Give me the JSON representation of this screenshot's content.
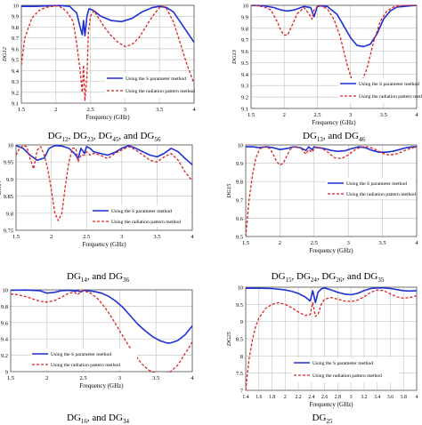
{
  "captions": [
    {
      "base": "DG",
      "parts": [
        "12",
        ", DG",
        "23",
        ", DG",
        "45",
        ", and DG",
        "56"
      ]
    },
    {
      "base": "DG",
      "parts": [
        "13",
        ", and DG",
        "46"
      ]
    },
    {
      "base": "DG",
      "parts": [
        "14",
        ", and DG",
        "36"
      ]
    },
    {
      "base": "DG",
      "parts": [
        "15",
        ", DG",
        "24",
        ", DG",
        "26",
        ", and DG",
        "35"
      ]
    },
    {
      "base": "DG",
      "parts": [
        "16",
        ", and DG",
        "34"
      ]
    },
    {
      "base": "DG",
      "parts": [
        "25"
      ]
    }
  ],
  "chart_data": [
    {
      "type": "line",
      "xlabel": "Frequency (GHz)",
      "ylabel": "DG12",
      "xlim": [
        1.5,
        4
      ],
      "ylim": [
        9.1,
        10
      ],
      "xticks": [
        "1.5",
        "2",
        "2.5",
        "3",
        "3.5",
        "4"
      ],
      "yticks": [
        "9.1",
        "9.2",
        "9.3",
        "9.4",
        "9.5",
        "9.6",
        "9.7",
        "9.8",
        "9.9",
        "10"
      ],
      "colors": [
        "#1f2fd6",
        "#e02020"
      ],
      "legend": "bottom-right",
      "series": [
        {
          "name": "Using the S parameter method",
          "style": "solid",
          "x": [
            1.5,
            1.7,
            1.9,
            2.05,
            2.2,
            2.3,
            2.35,
            2.38,
            2.4,
            2.42,
            2.45,
            2.48,
            2.55,
            2.65,
            2.8,
            2.95,
            3.1,
            3.25,
            3.4,
            3.5,
            3.6,
            3.7,
            3.85,
            4.0
          ],
          "y": [
            9.99,
            9.99,
            9.995,
            9.998,
            9.99,
            9.93,
            9.8,
            9.73,
            9.86,
            9.72,
            9.9,
            9.97,
            9.95,
            9.9,
            9.86,
            9.85,
            9.88,
            9.94,
            9.98,
            9.99,
            9.98,
            9.94,
            9.8,
            9.66
          ]
        },
        {
          "name": "Using the radiation pattern method",
          "style": "dashed",
          "x": [
            1.5,
            1.55,
            1.65,
            1.75,
            1.85,
            1.95,
            2.0,
            2.05,
            2.15,
            2.25,
            2.3,
            2.35,
            2.38,
            2.4,
            2.42,
            2.45,
            2.47,
            2.5,
            2.55,
            2.6,
            2.7,
            2.8,
            2.9,
            3.0,
            3.1,
            3.2,
            3.3,
            3.4,
            3.5,
            3.55,
            3.6,
            3.7,
            3.8,
            3.9,
            4.0
          ],
          "y": [
            9.45,
            9.7,
            9.88,
            9.95,
            9.98,
            9.99,
            9.995,
            9.99,
            9.95,
            9.85,
            9.65,
            9.4,
            9.2,
            9.45,
            9.12,
            9.35,
            9.75,
            9.9,
            9.95,
            9.9,
            9.8,
            9.72,
            9.66,
            9.62,
            9.64,
            9.7,
            9.8,
            9.9,
            9.98,
            9.99,
            9.97,
            9.85,
            9.65,
            9.45,
            9.28
          ]
        }
      ]
    },
    {
      "type": "line",
      "xlabel": "Frequency (GHz)",
      "ylabel": "DG13",
      "xlim": [
        1.5,
        4
      ],
      "ylim": [
        9.1,
        10
      ],
      "xticks": [
        "1.5",
        "2",
        "2.5",
        "3",
        "3.5",
        "4"
      ],
      "yticks": [
        "9.1",
        "9.2",
        "9.3",
        "9.4",
        "9.5",
        "9.6",
        "9.7",
        "9.8",
        "9.9",
        "10"
      ],
      "colors": [
        "#1f2fd6",
        "#e02020"
      ],
      "legend": "bottom-right",
      "series": [
        {
          "name": "Using the S parameter method",
          "style": "solid",
          "x": [
            1.5,
            1.7,
            1.85,
            1.95,
            2.05,
            2.15,
            2.3,
            2.4,
            2.45,
            2.5,
            2.55,
            2.65,
            2.8,
            2.9,
            3.0,
            3.1,
            3.2,
            3.3,
            3.4,
            3.5,
            3.6,
            3.7,
            3.8,
            3.9,
            4.0
          ],
          "y": [
            10.0,
            9.995,
            9.98,
            9.96,
            9.95,
            9.96,
            9.99,
            9.98,
            9.9,
            9.99,
            9.995,
            9.99,
            9.92,
            9.82,
            9.72,
            9.65,
            9.64,
            9.66,
            9.75,
            9.88,
            9.95,
            9.985,
            9.99,
            9.995,
            10.0
          ]
        },
        {
          "name": "Using the radiation pattern method",
          "style": "dashed",
          "x": [
            1.5,
            1.6,
            1.7,
            1.8,
            1.9,
            1.95,
            2.0,
            2.05,
            2.1,
            2.2,
            2.3,
            2.38,
            2.42,
            2.45,
            2.5,
            2.55,
            2.65,
            2.75,
            2.85,
            2.95,
            3.05,
            3.15,
            3.25,
            3.35,
            3.45,
            3.55,
            3.65,
            3.75,
            3.85,
            4.0
          ],
          "y": [
            10.0,
            9.995,
            9.985,
            9.96,
            9.85,
            9.78,
            9.74,
            9.74,
            9.8,
            9.93,
            9.98,
            9.92,
            9.88,
            9.96,
            9.99,
            9.995,
            9.97,
            9.88,
            9.72,
            9.48,
            9.3,
            9.3,
            9.45,
            9.68,
            9.86,
            9.95,
            9.985,
            9.995,
            10.0,
            10.0
          ]
        }
      ]
    },
    {
      "type": "line",
      "xlabel": "Frequency (GHz)",
      "ylabel": "DG14",
      "xlim": [
        1.5,
        4
      ],
      "ylim": [
        9.75,
        10
      ],
      "xticks": [
        "1.5",
        "2",
        "2.5",
        "3",
        "3.5",
        "4"
      ],
      "yticks": [
        "9.75",
        "9.8",
        "9.85",
        "9.9",
        "9.95",
        "10"
      ],
      "colors": [
        "#1f2fd6",
        "#e02020"
      ],
      "legend": "bottom-right",
      "series": [
        {
          "name": "Using the S parameter method",
          "style": "solid",
          "x": [
            1.5,
            1.6,
            1.7,
            1.8,
            1.9,
            1.97,
            2.05,
            2.15,
            2.25,
            2.33,
            2.38,
            2.42,
            2.47,
            2.5,
            2.55,
            2.6,
            2.7,
            2.8,
            2.9,
            3.0,
            3.1,
            3.2,
            3.3,
            3.4,
            3.5,
            3.6,
            3.7,
            3.8,
            3.9,
            4.0
          ],
          "y": [
            9.998,
            9.99,
            9.97,
            9.955,
            9.962,
            9.99,
            9.998,
            9.997,
            9.99,
            9.975,
            9.96,
            9.99,
            9.975,
            9.995,
            9.99,
            9.98,
            9.975,
            9.97,
            9.978,
            9.99,
            9.998,
            9.99,
            9.98,
            9.97,
            9.965,
            9.975,
            9.99,
            9.98,
            9.96,
            9.942
          ]
        },
        {
          "name": "Using the radiation pattern method",
          "style": "dashed",
          "x": [
            1.5,
            1.55,
            1.6,
            1.65,
            1.7,
            1.75,
            1.8,
            1.85,
            1.9,
            1.95,
            2.0,
            2.05,
            2.1,
            2.15,
            2.2,
            2.25,
            2.3,
            2.35,
            2.38,
            2.42,
            2.47,
            2.5,
            2.55,
            2.6,
            2.7,
            2.8,
            2.9,
            3.0,
            3.1,
            3.2,
            3.3,
            3.4,
            3.5,
            3.6,
            3.7,
            3.8,
            3.9,
            4.0
          ],
          "y": [
            9.97,
            9.99,
            9.998,
            9.995,
            9.96,
            9.93,
            9.985,
            9.995,
            9.97,
            9.93,
            9.87,
            9.8,
            9.778,
            9.8,
            9.88,
            9.95,
            9.99,
            9.99,
            9.95,
            9.97,
            9.97,
            9.98,
            9.97,
            9.975,
            9.97,
            9.96,
            9.975,
            9.985,
            9.995,
            9.985,
            9.97,
            9.955,
            9.95,
            9.965,
            9.975,
            9.955,
            9.92,
            9.895
          ]
        }
      ]
    },
    {
      "type": "line",
      "xlabel": "Frequency (GHz)",
      "ylabel": "DG15",
      "xlim": [
        1.5,
        4
      ],
      "ylim": [
        9.5,
        10
      ],
      "xticks": [
        "1.5",
        "2",
        "2.5",
        "3",
        "3.5",
        "4"
      ],
      "yticks": [
        "9.5",
        "9.6",
        "9.7",
        "9.8",
        "9.9",
        "10"
      ],
      "colors": [
        "#1f2fd6",
        "#e02020"
      ],
      "legend": "bottom-right",
      "series": [
        {
          "name": "Using the S parameter method",
          "style": "solid",
          "x": [
            1.5,
            1.6,
            1.7,
            1.8,
            1.9,
            2.0,
            2.1,
            2.2,
            2.3,
            2.38,
            2.42,
            2.47,
            2.5,
            2.55,
            2.65,
            2.75,
            2.85,
            2.95,
            3.05,
            3.15,
            3.25,
            3.35,
            3.45,
            3.55,
            3.65,
            3.75,
            3.85,
            3.95,
            4.0
          ],
          "y": [
            9.99,
            9.99,
            9.985,
            9.99,
            9.985,
            9.975,
            9.98,
            9.99,
            9.985,
            9.97,
            9.99,
            9.975,
            9.99,
            9.985,
            9.98,
            9.97,
            9.965,
            9.968,
            9.98,
            9.99,
            9.985,
            9.97,
            9.96,
            9.96,
            9.965,
            9.975,
            9.985,
            9.99,
            9.99
          ]
        },
        {
          "name": "Using the radiation pattern method",
          "style": "dashed",
          "x": [
            1.5,
            1.52,
            1.55,
            1.6,
            1.65,
            1.7,
            1.75,
            1.8,
            1.85,
            1.9,
            1.95,
            2.0,
            2.05,
            2.1,
            2.15,
            2.2,
            2.3,
            2.38,
            2.42,
            2.47,
            2.5,
            2.55,
            2.6,
            2.7,
            2.8,
            2.9,
            3.0,
            3.1,
            3.2,
            3.3,
            3.4,
            3.5,
            3.6,
            3.7,
            3.8,
            3.9,
            4.0
          ],
          "y": [
            9.5,
            9.58,
            9.7,
            9.84,
            9.93,
            9.975,
            9.99,
            9.99,
            9.98,
            9.95,
            9.91,
            9.89,
            9.9,
            9.94,
            9.975,
            9.99,
            9.985,
            9.95,
            9.975,
            9.96,
            9.98,
            9.99,
            9.985,
            9.96,
            9.93,
            9.925,
            9.945,
            9.975,
            9.99,
            9.99,
            9.975,
            9.955,
            9.945,
            9.95,
            9.965,
            9.98,
            9.99
          ]
        }
      ]
    },
    {
      "type": "line",
      "xlabel": "Frequency (GHz)",
      "ylabel": "DG16",
      "xlim": [
        1.5,
        4
      ],
      "ylim": [
        9,
        10
      ],
      "xticks": [
        "1.5",
        "2",
        "2.5",
        "3",
        "3.5",
        "4"
      ],
      "yticks": [
        "9",
        "9.2",
        "9.4",
        "9.6",
        "9.8",
        "10"
      ],
      "colors": [
        "#1f2fd6",
        "#e02020"
      ],
      "legend": "bottom-left",
      "series": [
        {
          "name": "Using the S parameter method",
          "style": "solid",
          "x": [
            1.5,
            1.7,
            1.9,
            2.0,
            2.1,
            2.2,
            2.3,
            2.38,
            2.42,
            2.47,
            2.5,
            2.55,
            2.65,
            2.75,
            2.85,
            2.95,
            3.05,
            3.15,
            3.25,
            3.35,
            3.45,
            3.55,
            3.65,
            3.7,
            3.8,
            3.9,
            4.0
          ],
          "y": [
            9.995,
            9.998,
            9.99,
            9.96,
            9.97,
            9.99,
            9.995,
            9.985,
            9.99,
            9.975,
            9.995,
            9.99,
            9.98,
            9.96,
            9.92,
            9.86,
            9.78,
            9.68,
            9.58,
            9.5,
            9.43,
            9.38,
            9.35,
            9.35,
            9.38,
            9.45,
            9.56
          ]
        },
        {
          "name": "Using the radiation pattern method",
          "style": "dashed",
          "x": [
            1.5,
            1.6,
            1.7,
            1.8,
            1.9,
            2.0,
            2.1,
            2.2,
            2.3,
            2.38,
            2.42,
            2.47,
            2.5,
            2.6,
            2.7,
            2.8,
            2.9,
            3.0,
            3.1,
            3.2,
            3.3,
            3.4,
            3.5,
            3.6,
            3.7,
            3.8,
            3.9,
            4.0
          ],
          "y": [
            9.95,
            9.94,
            9.92,
            9.89,
            9.86,
            9.85,
            9.87,
            9.91,
            9.96,
            9.97,
            9.94,
            9.98,
            9.99,
            9.96,
            9.89,
            9.78,
            9.65,
            9.5,
            9.35,
            9.22,
            9.1,
            9.02,
            8.98,
            8.97,
            9.0,
            9.08,
            9.22,
            9.36
          ]
        }
      ]
    },
    {
      "type": "line",
      "xlabel": "Frequency (GHz)",
      "ylabel": "DG25",
      "xlim": [
        1.4,
        4
      ],
      "ylim": [
        7,
        10
      ],
      "xticks": [
        "1.4",
        "1.6",
        "1.8",
        "2",
        "2.2",
        "2.4",
        "2.6",
        "2.8",
        "3",
        "3.2",
        "3.4",
        "3.6",
        "3.8",
        "4"
      ],
      "yticks": [
        "7",
        "7.5",
        "8",
        "8.5",
        "9",
        "9.5",
        "10"
      ],
      "colors": [
        "#1f2fd6",
        "#e02020"
      ],
      "legend": "bottom-right",
      "series": [
        {
          "name": "Using the S parameter method",
          "style": "solid",
          "x": [
            1.4,
            1.6,
            1.8,
            2.0,
            2.1,
            2.2,
            2.3,
            2.38,
            2.42,
            2.46,
            2.5,
            2.55,
            2.6,
            2.7,
            2.8,
            2.9,
            3.0,
            3.1,
            3.2,
            3.3,
            3.4,
            3.5,
            3.6,
            3.7,
            3.8,
            3.9,
            4.0
          ],
          "y": [
            9.97,
            9.97,
            9.96,
            9.92,
            9.88,
            9.82,
            9.72,
            9.6,
            9.9,
            9.55,
            9.85,
            9.95,
            9.98,
            9.92,
            9.85,
            9.8,
            9.78,
            9.82,
            9.9,
            9.96,
            9.98,
            9.98,
            9.96,
            9.93,
            9.9,
            9.89,
            9.9
          ]
        },
        {
          "name": "Using the radiation pattern method",
          "style": "dashed",
          "x": [
            1.4,
            1.42,
            1.45,
            1.5,
            1.55,
            1.6,
            1.7,
            1.8,
            1.9,
            2.0,
            2.1,
            2.2,
            2.3,
            2.38,
            2.42,
            2.46,
            2.5,
            2.55,
            2.6,
            2.7,
            2.8,
            2.9,
            3.0,
            3.1,
            3.2,
            3.3,
            3.4,
            3.5,
            3.6,
            3.7,
            3.8,
            3.9,
            4.0
          ],
          "y": [
            7.0,
            7.4,
            7.9,
            8.45,
            8.85,
            9.1,
            9.38,
            9.5,
            9.55,
            9.5,
            9.4,
            9.28,
            9.18,
            9.2,
            9.55,
            9.15,
            9.2,
            9.5,
            9.65,
            9.7,
            9.65,
            9.6,
            9.58,
            9.62,
            9.72,
            9.85,
            9.92,
            9.9,
            9.8,
            9.72,
            9.68,
            9.7,
            9.75
          ]
        }
      ]
    }
  ]
}
